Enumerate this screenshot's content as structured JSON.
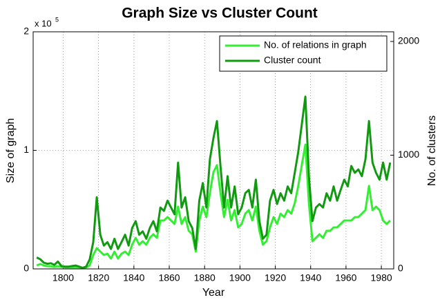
{
  "chart_data": {
    "type": "line",
    "title": "Graph Size vs Cluster Count",
    "x_label": "Year",
    "y_label": "Size of graph",
    "y2_label": "No. of clusters",
    "y_multiplier": "x 10",
    "y_multiplier_exp": "5",
    "xlim": [
      1783,
      1987
    ],
    "xticks": [
      1800,
      1820,
      1840,
      1860,
      1880,
      1900,
      1920,
      1940,
      1960,
      1980
    ],
    "ylim": [
      0,
      200000
    ],
    "yticks": [
      {
        "value": 0,
        "label": "0"
      },
      {
        "value": 100000,
        "label": "1"
      },
      {
        "value": 200000,
        "label": "2"
      }
    ],
    "y2lim": [
      0,
      2085
    ],
    "y2ticks": [
      0,
      1000,
      2000
    ],
    "grid": true,
    "legend": "upper right",
    "x": [
      1785,
      1787,
      1789,
      1791,
      1793,
      1795,
      1797,
      1799,
      1801,
      1803,
      1805,
      1807,
      1809,
      1811,
      1813,
      1815,
      1817,
      1819,
      1821,
      1823,
      1825,
      1827,
      1829,
      1831,
      1833,
      1835,
      1837,
      1839,
      1841,
      1843,
      1845,
      1847,
      1849,
      1851,
      1853,
      1855,
      1857,
      1859,
      1861,
      1863,
      1865,
      1867,
      1869,
      1871,
      1873,
      1875,
      1877,
      1879,
      1881,
      1883,
      1885,
      1887,
      1889,
      1891,
      1893,
      1895,
      1897,
      1899,
      1901,
      1903,
      1905,
      1907,
      1909,
      1911,
      1913,
      1915,
      1917,
      1919,
      1921,
      1923,
      1925,
      1927,
      1929,
      1931,
      1933,
      1935,
      1937,
      1939,
      1941,
      1943,
      1945,
      1947,
      1949,
      1951,
      1953,
      1955,
      1957,
      1959,
      1961,
      1963,
      1965,
      1967,
      1969,
      1971,
      1973,
      1975,
      1977,
      1979,
      1981,
      1983,
      1985
    ],
    "series": [
      {
        "name": "No. of relations in graph",
        "color": "#33ee33",
        "axis": "y",
        "values": [
          2900,
          4100,
          2900,
          2300,
          2300,
          1700,
          2300,
          1700,
          1200,
          1200,
          1200,
          1200,
          1200,
          600,
          1200,
          2900,
          11700,
          17500,
          14600,
          11700,
          12800,
          8700,
          14600,
          8700,
          12800,
          14600,
          11700,
          20400,
          26200,
          20400,
          23300,
          20400,
          26200,
          29200,
          26200,
          40800,
          40800,
          43700,
          40800,
          37900,
          52500,
          37900,
          43700,
          32100,
          29200,
          14600,
          40800,
          52500,
          43700,
          64100,
          81600,
          87500,
          64100,
          43700,
          58300,
          40800,
          49600,
          35000,
          37900,
          46600,
          49600,
          40800,
          52500,
          32100,
          20400,
          23300,
          35000,
          43700,
          37900,
          46600,
          43700,
          49600,
          46600,
          55400,
          70000,
          87500,
          104900,
          55400,
          23300,
          26200,
          29200,
          26200,
          32100,
          32100,
          35000,
          35000,
          37900,
          40800,
          40800,
          40800,
          43700,
          43700,
          46600,
          49600,
          70000,
          49600,
          52500,
          49600,
          40800,
          37900,
          40800
        ]
      },
      {
        "name": "Cluster count",
        "color": "#119911",
        "axis": "y2",
        "values": [
          100,
          85,
          55,
          45,
          50,
          35,
          65,
          25,
          20,
          20,
          25,
          30,
          20,
          10,
          20,
          85,
          235,
          630,
          300,
          205,
          235,
          175,
          265,
          175,
          235,
          300,
          205,
          360,
          420,
          300,
          330,
          265,
          360,
          420,
          330,
          540,
          510,
          600,
          540,
          480,
          935,
          540,
          630,
          420,
          360,
          175,
          600,
          755,
          540,
          965,
          1150,
          1300,
          905,
          540,
          815,
          540,
          725,
          480,
          540,
          665,
          695,
          540,
          785,
          420,
          265,
          300,
          600,
          695,
          570,
          665,
          600,
          725,
          665,
          845,
          1030,
          1270,
          1515,
          815,
          420,
          540,
          570,
          540,
          665,
          600,
          725,
          600,
          695,
          785,
          725,
          905,
          845,
          875,
          815,
          965,
          1300,
          935,
          845,
          785,
          935,
          785,
          935
        ]
      }
    ]
  }
}
